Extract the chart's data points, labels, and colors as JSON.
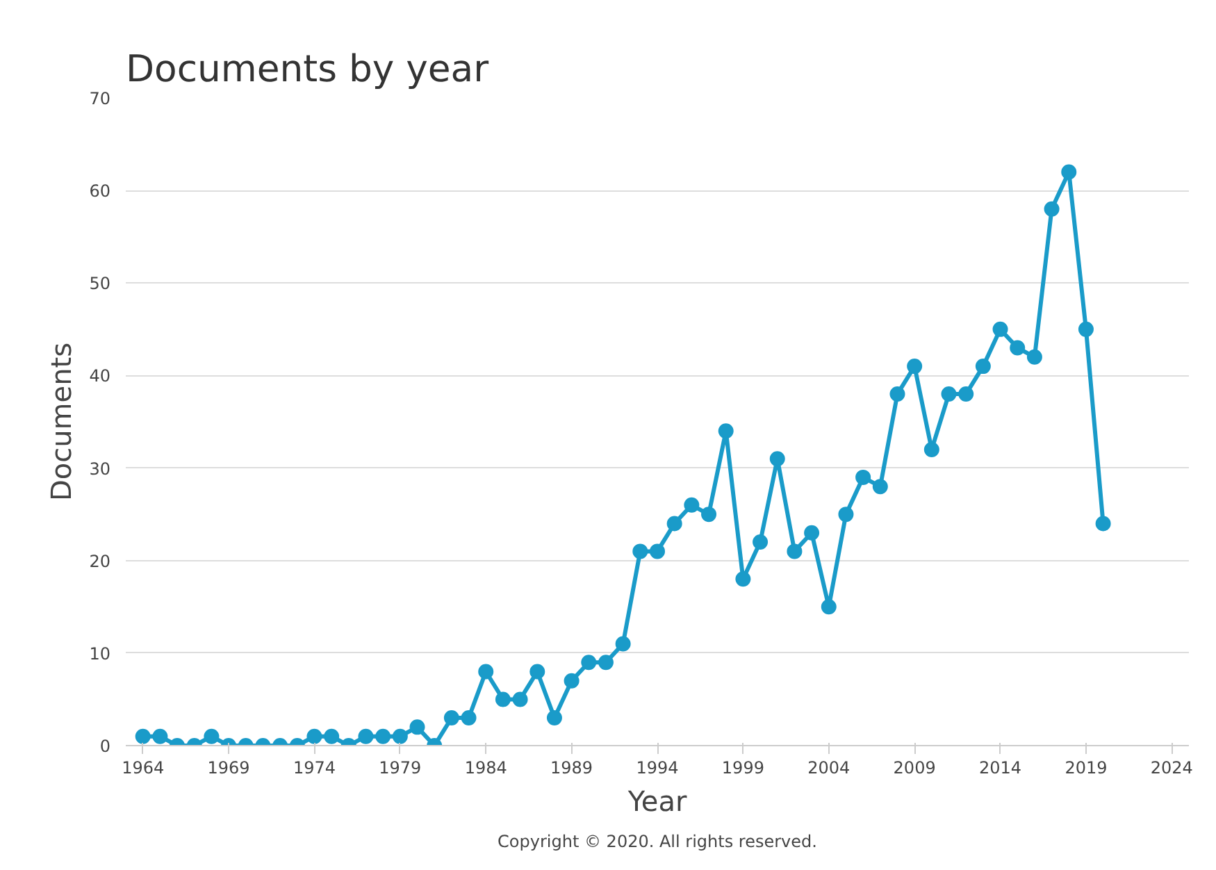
{
  "chart_data": {
    "type": "line",
    "title": "Documents by year",
    "xlabel": "Year",
    "ylabel": "Documents",
    "x": [
      1964,
      1965,
      1966,
      1967,
      1968,
      1969,
      1970,
      1971,
      1972,
      1973,
      1974,
      1975,
      1976,
      1977,
      1978,
      1979,
      1980,
      1981,
      1982,
      1983,
      1984,
      1985,
      1986,
      1987,
      1988,
      1989,
      1990,
      1991,
      1992,
      1993,
      1994,
      1995,
      1996,
      1997,
      1998,
      1999,
      2000,
      2001,
      2002,
      2003,
      2004,
      2005,
      2006,
      2007,
      2008,
      2009,
      2010,
      2011,
      2012,
      2013,
      2014,
      2015,
      2016,
      2017,
      2018,
      2019,
      2020
    ],
    "series": [
      {
        "color": "#1a9bc9",
        "values": [
          1,
          1,
          0,
          0,
          1,
          0,
          0,
          0,
          0,
          0,
          1,
          1,
          0,
          1,
          1,
          1,
          2,
          0,
          3,
          3,
          8,
          5,
          5,
          8,
          3,
          7,
          9,
          9,
          11,
          21,
          21,
          24,
          26,
          25,
          34,
          18,
          22,
          31,
          21,
          23,
          15,
          25,
          29,
          28,
          38,
          41,
          32,
          38,
          38,
          41,
          45,
          43,
          42,
          58,
          62,
          45,
          24
        ]
      }
    ],
    "xlim": [
      1963,
      2025
    ],
    "xticks": [
      1964,
      1969,
      1974,
      1979,
      1984,
      1989,
      1994,
      1999,
      2004,
      2009,
      2014,
      2019,
      2024
    ],
    "ylim": [
      0,
      70
    ],
    "yticks": [
      0,
      10,
      20,
      30,
      40,
      50,
      60,
      70
    ],
    "grid": "y",
    "marker": "circle",
    "line_style": "solid",
    "annotations": [
      "Copyright © 2020. All rights reserved."
    ]
  }
}
